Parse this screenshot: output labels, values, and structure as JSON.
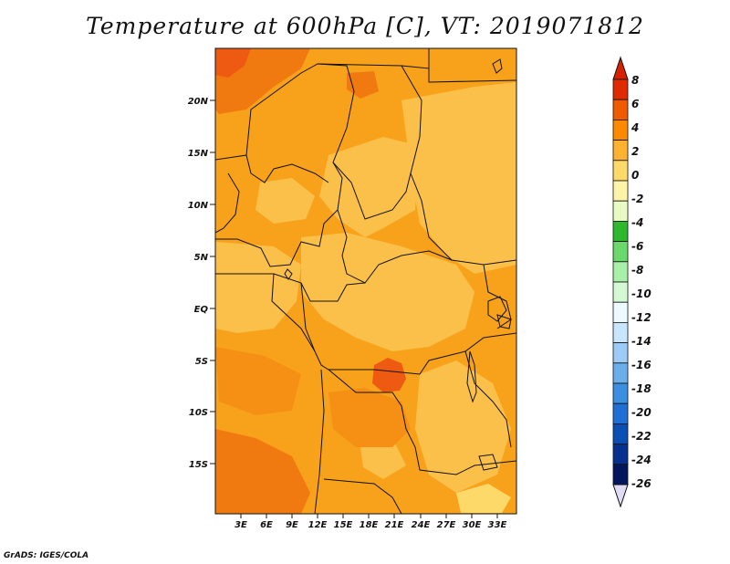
{
  "title": "Temperature at 600hPa [C], VT: 2019071812",
  "credit": "GrADS: IGES/COLA",
  "map": {
    "lat_ticks": [
      "20N",
      "15N",
      "10N",
      "5N",
      "EQ",
      "5S",
      "10S",
      "15S"
    ],
    "lon_ticks": [
      "3E",
      "6E",
      "9E",
      "12E",
      "15E",
      "18E",
      "21E",
      "24E",
      "27E",
      "30E",
      "33E"
    ],
    "lat_range_deg": [
      -20,
      25
    ],
    "lon_range_deg": [
      0,
      35
    ],
    "hotspot_label": "warm anomaly near 20E 7S"
  },
  "colorbar": {
    "labels": [
      "8",
      "6",
      "4",
      "2",
      "0",
      "-2",
      "-4",
      "-6",
      "-8",
      "-10",
      "-12",
      "-14",
      "-16",
      "-18",
      "-20",
      "-22",
      "-24",
      "-26"
    ],
    "colors": [
      "#e02a00",
      "#f05a00",
      "#fb8a00",
      "#fdb331",
      "#fdd96a",
      "#fef4a8",
      "#e8fbc4",
      "#2db82d",
      "#6ad86a",
      "#a8efa8",
      "#d4f7d4",
      "#eef9ff",
      "#c8e6fb",
      "#9ccbf5",
      "#6aaeea",
      "#3a8fe0",
      "#1f6fd4",
      "#0a4fb4",
      "#06308e",
      "#02175e"
    ],
    "top_arrow_color": "#d62000",
    "bottom_arrow_color": "#e0dcf6"
  },
  "colors": {
    "warm_base": "#f7a21a",
    "light_orange": "#fbc04a",
    "dark_orange": "#f07a10",
    "red_orange": "#ee5a12"
  }
}
